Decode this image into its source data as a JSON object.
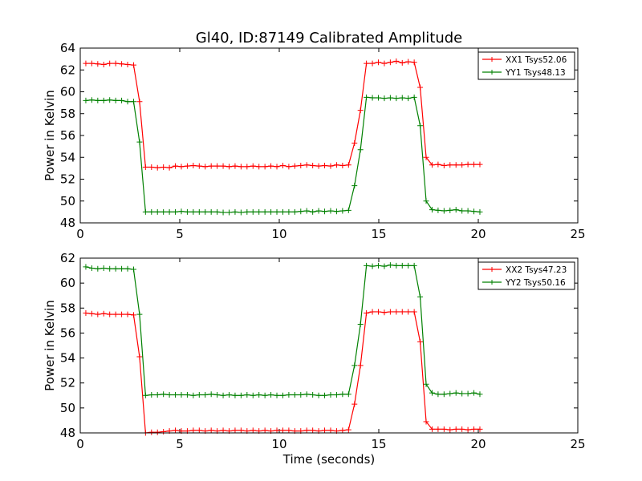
{
  "title": "Gl40, ID:87149 Calibrated Amplitude",
  "xlabel": "Time (seconds)",
  "chart_data": [
    {
      "type": "line",
      "title": "Gl40, ID:87149 Calibrated Amplitude",
      "xlabel": "",
      "ylabel": "Power in Kelvin",
      "xlim": [
        0,
        25
      ],
      "ylim": [
        48,
        64
      ],
      "xticks": [
        "0",
        "5",
        "10",
        "15",
        "20",
        "25"
      ],
      "yticks": [
        "48",
        "50",
        "52",
        "54",
        "56",
        "58",
        "60",
        "62",
        "64"
      ],
      "grid": false,
      "legend_position": "top-right",
      "series": [
        {
          "name": "XX1 Tsys52.06",
          "color": "#ff0000",
          "x": [
            0.28,
            0.58,
            0.88,
            1.18,
            1.48,
            1.78,
            2.08,
            2.38,
            2.68,
            2.98,
            3.28,
            3.58,
            3.88,
            4.18,
            4.48,
            4.78,
            5.08,
            5.38,
            5.68,
            5.98,
            6.28,
            6.58,
            6.88,
            7.18,
            7.48,
            7.78,
            8.08,
            8.38,
            8.68,
            8.98,
            9.28,
            9.58,
            9.88,
            10.18,
            10.48,
            10.78,
            11.08,
            11.38,
            11.68,
            11.98,
            12.28,
            12.58,
            12.88,
            13.18,
            13.48,
            13.78,
            14.08,
            14.38,
            14.68,
            14.98,
            15.28,
            15.58,
            15.88,
            16.18,
            16.48,
            16.78,
            17.08,
            17.38,
            17.68,
            17.98,
            18.28,
            18.58,
            18.88,
            19.18,
            19.48,
            19.78,
            20.08
          ],
          "values": [
            62.6,
            62.6,
            62.55,
            62.5,
            62.6,
            62.6,
            62.55,
            62.5,
            62.45,
            59.1,
            53.1,
            53.1,
            53.05,
            53.1,
            53.05,
            53.2,
            53.15,
            53.2,
            53.25,
            53.2,
            53.15,
            53.2,
            53.2,
            53.2,
            53.15,
            53.2,
            53.15,
            53.15,
            53.2,
            53.15,
            53.15,
            53.2,
            53.15,
            53.25,
            53.15,
            53.2,
            53.25,
            53.3,
            53.25,
            53.2,
            53.25,
            53.2,
            53.3,
            53.25,
            53.3,
            55.3,
            58.3,
            62.6,
            62.6,
            62.7,
            62.6,
            62.7,
            62.8,
            62.65,
            62.75,
            62.7,
            60.4,
            54.0,
            53.3,
            53.35,
            53.25,
            53.3,
            53.3,
            53.3,
            53.35,
            53.35,
            53.35
          ]
        },
        {
          "name": "YY1 Tsys48.13",
          "color": "#008000",
          "x": [
            0.28,
            0.58,
            0.88,
            1.18,
            1.48,
            1.78,
            2.08,
            2.38,
            2.68,
            2.98,
            3.28,
            3.58,
            3.88,
            4.18,
            4.48,
            4.78,
            5.08,
            5.38,
            5.68,
            5.98,
            6.28,
            6.58,
            6.88,
            7.18,
            7.48,
            7.78,
            8.08,
            8.38,
            8.68,
            8.98,
            9.28,
            9.58,
            9.88,
            10.18,
            10.48,
            10.78,
            11.08,
            11.38,
            11.68,
            11.98,
            12.28,
            12.58,
            12.88,
            13.18,
            13.48,
            13.78,
            14.08,
            14.38,
            14.68,
            14.98,
            15.28,
            15.58,
            15.88,
            16.18,
            16.48,
            16.78,
            17.08,
            17.38,
            17.68,
            17.98,
            18.28,
            18.58,
            18.88,
            19.18,
            19.48,
            19.78,
            20.08
          ],
          "values": [
            59.2,
            59.25,
            59.2,
            59.2,
            59.25,
            59.2,
            59.2,
            59.1,
            59.1,
            55.4,
            49.0,
            49.0,
            49.0,
            49.0,
            49.0,
            49.0,
            49.05,
            49.0,
            49.0,
            49.0,
            49.0,
            49.0,
            49.0,
            48.95,
            48.95,
            49.0,
            48.95,
            49.0,
            49.0,
            49.0,
            49.0,
            49.0,
            49.0,
            49.0,
            49.0,
            49.0,
            49.05,
            49.1,
            49.0,
            49.1,
            49.05,
            49.1,
            49.05,
            49.1,
            49.15,
            51.4,
            54.7,
            59.5,
            59.45,
            59.45,
            59.4,
            59.45,
            59.4,
            59.45,
            59.4,
            59.5,
            56.9,
            50.0,
            49.2,
            49.15,
            49.1,
            49.15,
            49.2,
            49.1,
            49.1,
            49.05,
            49.0
          ]
        }
      ]
    },
    {
      "type": "line",
      "title": "",
      "xlabel": "Time (seconds)",
      "ylabel": "Power in Kelvin",
      "xlim": [
        0,
        25
      ],
      "ylim": [
        48,
        62
      ],
      "xticks": [
        "0",
        "5",
        "10",
        "15",
        "20",
        "25"
      ],
      "yticks": [
        "48",
        "50",
        "52",
        "54",
        "56",
        "58",
        "60",
        "62"
      ],
      "grid": false,
      "legend_position": "top-right",
      "series": [
        {
          "name": "XX2 Tsys47.23",
          "color": "#ff0000",
          "x": [
            0.28,
            0.58,
            0.88,
            1.18,
            1.48,
            1.78,
            2.08,
            2.38,
            2.68,
            2.98,
            3.28,
            3.58,
            3.88,
            4.18,
            4.48,
            4.78,
            5.08,
            5.38,
            5.68,
            5.98,
            6.28,
            6.58,
            6.88,
            7.18,
            7.48,
            7.78,
            8.08,
            8.38,
            8.68,
            8.98,
            9.28,
            9.58,
            9.88,
            10.18,
            10.48,
            10.78,
            11.08,
            11.38,
            11.68,
            11.98,
            12.28,
            12.58,
            12.88,
            13.18,
            13.48,
            13.78,
            14.08,
            14.38,
            14.68,
            14.98,
            15.28,
            15.58,
            15.88,
            16.18,
            16.48,
            16.78,
            17.08,
            17.38,
            17.68,
            17.98,
            18.28,
            18.58,
            18.88,
            19.18,
            19.48,
            19.78,
            20.08
          ],
          "values": [
            57.6,
            57.55,
            57.5,
            57.55,
            57.5,
            57.5,
            57.5,
            57.5,
            57.45,
            54.1,
            48.0,
            48.05,
            48.05,
            48.1,
            48.15,
            48.2,
            48.15,
            48.15,
            48.2,
            48.2,
            48.15,
            48.2,
            48.15,
            48.2,
            48.15,
            48.2,
            48.2,
            48.15,
            48.2,
            48.15,
            48.2,
            48.15,
            48.2,
            48.2,
            48.2,
            48.15,
            48.15,
            48.2,
            48.2,
            48.15,
            48.2,
            48.2,
            48.15,
            48.2,
            48.25,
            50.3,
            53.4,
            57.6,
            57.7,
            57.7,
            57.65,
            57.7,
            57.7,
            57.7,
            57.7,
            57.7,
            55.3,
            48.9,
            48.3,
            48.3,
            48.3,
            48.25,
            48.3,
            48.3,
            48.25,
            48.3,
            48.3
          ]
        },
        {
          "name": "YY2 Tsys50.16",
          "color": "#008000",
          "x": [
            0.28,
            0.58,
            0.88,
            1.18,
            1.48,
            1.78,
            2.08,
            2.38,
            2.68,
            2.98,
            3.28,
            3.58,
            3.88,
            4.18,
            4.48,
            4.78,
            5.08,
            5.38,
            5.68,
            5.98,
            6.28,
            6.58,
            6.88,
            7.18,
            7.48,
            7.78,
            8.08,
            8.38,
            8.68,
            8.98,
            9.28,
            9.58,
            9.88,
            10.18,
            10.48,
            10.78,
            11.08,
            11.38,
            11.68,
            11.98,
            12.28,
            12.58,
            12.88,
            13.18,
            13.48,
            13.78,
            14.08,
            14.38,
            14.68,
            14.98,
            15.28,
            15.58,
            15.88,
            16.18,
            16.48,
            16.78,
            17.08,
            17.38,
            17.68,
            17.98,
            18.28,
            18.58,
            18.88,
            19.18,
            19.48,
            19.78,
            20.08
          ],
          "values": [
            61.3,
            61.2,
            61.15,
            61.2,
            61.15,
            61.15,
            61.15,
            61.15,
            61.1,
            57.5,
            51.0,
            51.05,
            51.05,
            51.1,
            51.05,
            51.05,
            51.05,
            51.05,
            51.0,
            51.05,
            51.05,
            51.1,
            51.05,
            51.0,
            51.05,
            51.0,
            51.0,
            51.05,
            51.0,
            51.05,
            51.0,
            51.05,
            51.0,
            51.0,
            51.05,
            51.05,
            51.05,
            51.1,
            51.05,
            51.0,
            51.0,
            51.05,
            51.05,
            51.1,
            51.1,
            53.4,
            56.7,
            61.4,
            61.35,
            61.4,
            61.35,
            61.45,
            61.4,
            61.4,
            61.4,
            61.4,
            58.9,
            51.9,
            51.2,
            51.1,
            51.1,
            51.15,
            51.2,
            51.15,
            51.15,
            51.2,
            51.1
          ]
        }
      ]
    }
  ]
}
